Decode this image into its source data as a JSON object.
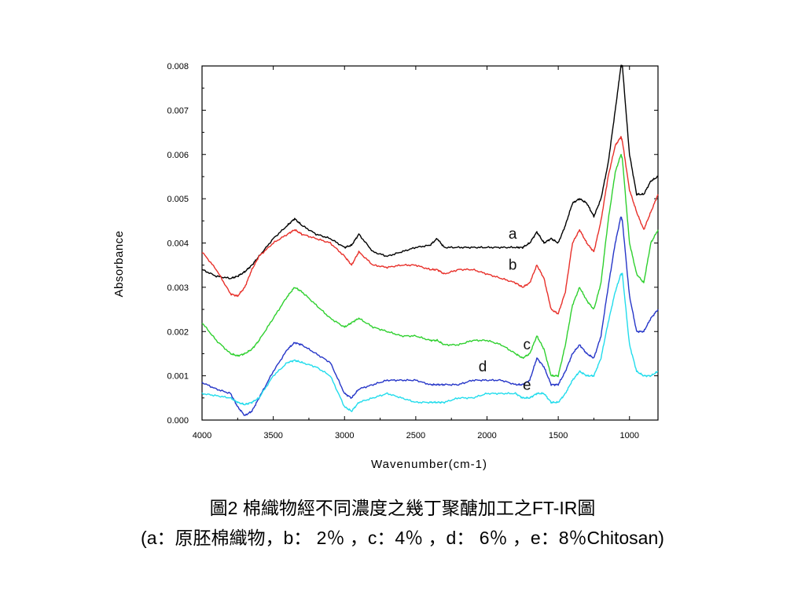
{
  "caption": {
    "line1": "圖2 棉織物經不同濃度之幾丁聚醣加工之FT-IR圖",
    "line2": "(a：原胚棉織物，b： 2％ ，c：4％ ，d： 6％ ，e：8％Chitosan)"
  },
  "chart_data": {
    "type": "line",
    "title": "",
    "xlabel": "Wavenumber(cm-1)",
    "ylabel": "Absorbance",
    "xlim": [
      4000,
      800
    ],
    "ylim": [
      0,
      0.008
    ],
    "x_ticks": [
      4000,
      3500,
      3000,
      2500,
      2000,
      1500,
      1000
    ],
    "y_ticks": [
      "0.000",
      "0.001",
      "0.002",
      "0.003",
      "0.004",
      "0.005",
      "0.006",
      "0.007",
      "0.008"
    ],
    "grid": false,
    "x": [
      4000,
      3900,
      3800,
      3750,
      3700,
      3650,
      3600,
      3500,
      3400,
      3350,
      3300,
      3200,
      3100,
      3000,
      2950,
      2900,
      2800,
      2700,
      2600,
      2500,
      2400,
      2350,
      2300,
      2200,
      2100,
      2000,
      1900,
      1800,
      1750,
      1700,
      1650,
      1600,
      1550,
      1500,
      1450,
      1400,
      1350,
      1300,
      1250,
      1200,
      1150,
      1100,
      1060,
      1050,
      1000,
      950,
      900,
      850,
      800
    ],
    "series": [
      {
        "name": "a",
        "color": "#000000",
        "values": [
          0.0034,
          0.00325,
          0.0032,
          0.00325,
          0.00335,
          0.0035,
          0.0037,
          0.0041,
          0.0044,
          0.00455,
          0.0044,
          0.0042,
          0.0041,
          0.0039,
          0.00395,
          0.0042,
          0.0038,
          0.0037,
          0.0038,
          0.0039,
          0.00395,
          0.0041,
          0.0039,
          0.0039,
          0.0039,
          0.0039,
          0.0039,
          0.0039,
          0.0039,
          0.004,
          0.00425,
          0.004,
          0.0041,
          0.004,
          0.0044,
          0.0049,
          0.005,
          0.0049,
          0.0046,
          0.005,
          0.0058,
          0.007,
          0.008,
          0.008,
          0.006,
          0.0051,
          0.0051,
          0.0054,
          0.0055
        ]
      },
      {
        "name": "b",
        "color": "#e8302a",
        "values": [
          0.0038,
          0.0034,
          0.00285,
          0.0028,
          0.003,
          0.0034,
          0.0037,
          0.004,
          0.0042,
          0.0043,
          0.0042,
          0.0041,
          0.004,
          0.0037,
          0.0035,
          0.0038,
          0.0035,
          0.00345,
          0.0035,
          0.0035,
          0.0034,
          0.0034,
          0.0033,
          0.0034,
          0.0034,
          0.0033,
          0.0032,
          0.0031,
          0.003,
          0.0031,
          0.0035,
          0.0032,
          0.0025,
          0.0024,
          0.0029,
          0.004,
          0.0043,
          0.004,
          0.0038,
          0.0045,
          0.0055,
          0.0062,
          0.0064,
          0.0063,
          0.0052,
          0.0047,
          0.0043,
          0.0047,
          0.0051
        ]
      },
      {
        "name": "c",
        "color": "#2fd02f",
        "values": [
          0.0022,
          0.0018,
          0.0015,
          0.00145,
          0.0015,
          0.0016,
          0.0018,
          0.0023,
          0.0028,
          0.003,
          0.0029,
          0.0026,
          0.0023,
          0.0021,
          0.0022,
          0.0023,
          0.0021,
          0.002,
          0.0019,
          0.0019,
          0.0018,
          0.0018,
          0.0017,
          0.0017,
          0.0018,
          0.0018,
          0.0017,
          0.0015,
          0.0014,
          0.0015,
          0.0019,
          0.0016,
          0.001,
          0.001,
          0.0017,
          0.0026,
          0.003,
          0.0027,
          0.0025,
          0.0031,
          0.0045,
          0.0056,
          0.006,
          0.0059,
          0.004,
          0.0033,
          0.0031,
          0.004,
          0.0043
        ]
      },
      {
        "name": "d",
        "color": "#2636c8",
        "values": [
          0.00085,
          0.0007,
          0.0006,
          0.0003,
          0.0001,
          0.0002,
          0.0005,
          0.0011,
          0.0016,
          0.00175,
          0.0017,
          0.0015,
          0.0013,
          0.0006,
          0.0005,
          0.0007,
          0.0008,
          0.0009,
          0.0009,
          0.0009,
          0.0008,
          0.0008,
          0.0008,
          0.0008,
          0.0009,
          0.0009,
          0.0009,
          0.0008,
          0.0008,
          0.0009,
          0.0014,
          0.0012,
          0.0008,
          0.0008,
          0.0011,
          0.0015,
          0.0017,
          0.0015,
          0.0014,
          0.0019,
          0.003,
          0.004,
          0.0046,
          0.0045,
          0.0028,
          0.002,
          0.002,
          0.0023,
          0.0025
        ]
      },
      {
        "name": "e",
        "color": "#22dcec",
        "values": [
          0.0006,
          0.00055,
          0.0005,
          0.0004,
          0.00035,
          0.0004,
          0.0005,
          0.001,
          0.0013,
          0.00135,
          0.0013,
          0.0012,
          0.001,
          0.0003,
          0.0002,
          0.0004,
          0.0005,
          0.0006,
          0.0005,
          0.0004,
          0.0004,
          0.0004,
          0.0004,
          0.0005,
          0.0005,
          0.0006,
          0.0006,
          0.0006,
          0.0005,
          0.0005,
          0.0006,
          0.0006,
          0.0004,
          0.0004,
          0.0006,
          0.0009,
          0.0011,
          0.001,
          0.001,
          0.0014,
          0.0022,
          0.0029,
          0.0033,
          0.0033,
          0.0017,
          0.0011,
          0.001,
          0.001,
          0.0011
        ]
      }
    ],
    "annotations": [
      {
        "text": "a",
        "x": 1820,
        "y": 0.0041
      },
      {
        "text": "b",
        "x": 1820,
        "y": 0.0034
      },
      {
        "text": "c",
        "x": 1720,
        "y": 0.0016
      },
      {
        "text": "d",
        "x": 2030,
        "y": 0.0011
      },
      {
        "text": "e",
        "x": 1720,
        "y": 0.00068
      }
    ]
  }
}
